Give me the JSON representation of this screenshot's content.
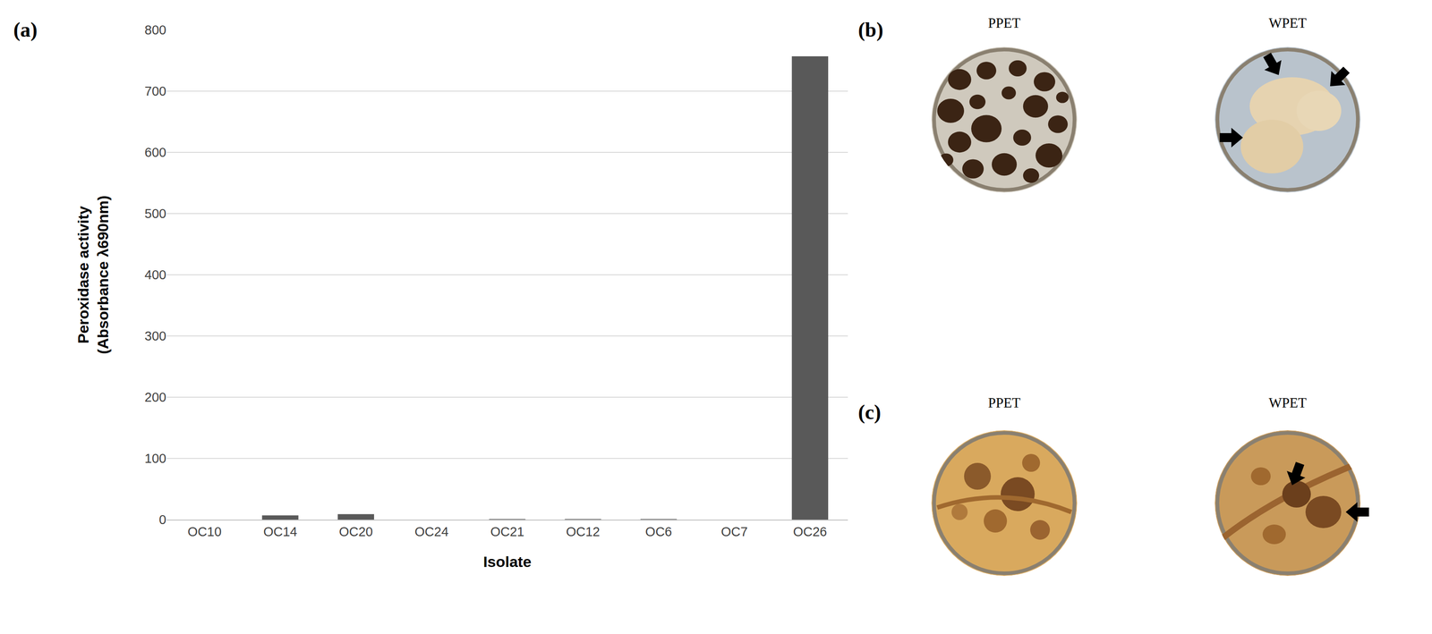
{
  "chart_data": {
    "type": "bar",
    "annotations": [
      "(a)"
    ],
    "x_label": "Isolate",
    "y_label": "Peroxidase activity\n(Absorbance λ690nm)",
    "categories": [
      "OC10",
      "OC14",
      "OC20",
      "OC24",
      "OC21",
      "OC12",
      "OC6",
      "OC7",
      "OC26"
    ],
    "values": [
      0,
      7,
      9,
      0,
      1,
      1,
      1,
      0,
      757
    ],
    "color": "#595959",
    "ylim": [
      0,
      800
    ],
    "yticks": [
      0,
      100,
      200,
      300,
      400,
      500,
      600,
      700,
      800
    ],
    "grid": true
  },
  "photo_panels": [
    {
      "label": "(b)",
      "images": [
        "PPET",
        "WPET"
      ]
    },
    {
      "label": "(c)",
      "images": [
        "PPET",
        "WPET"
      ]
    }
  ]
}
